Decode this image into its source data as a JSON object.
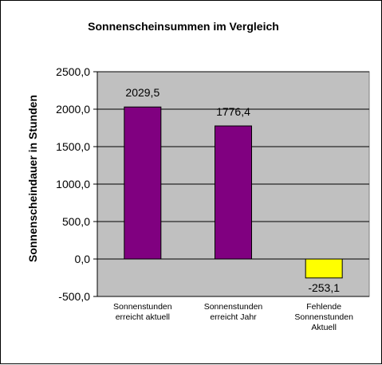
{
  "chart_data": {
    "type": "bar",
    "title": "Sonnenscheinsummen  im Vergleich",
    "xlabel": "",
    "ylabel": "Sonnenscheindauer  in Stunden",
    "ylim": [
      -500,
      2500
    ],
    "yticks": [
      "2500,0",
      "2000,0",
      "1500,0",
      "1000,0",
      "500,0",
      "0,0",
      "-500,0"
    ],
    "ytick_values": [
      2500,
      2000,
      1500,
      1000,
      500,
      0,
      -500
    ],
    "grid": true,
    "legend": "none",
    "categories": [
      [
        "Sonnenstunden",
        "erreicht aktuell"
      ],
      [
        "Sonnenstunden",
        "erreicht Jahr"
      ],
      [
        "Fehlende",
        "Sonnenstunden",
        "Aktuell"
      ]
    ],
    "values": [
      2029.5,
      1776.4,
      -253.1
    ],
    "value_labels": [
      "2029,5",
      "1776,4",
      "-253,1"
    ],
    "colors": [
      "#800080",
      "#800080",
      "#ffff00"
    ],
    "plot_background": "#c0c0c0"
  }
}
